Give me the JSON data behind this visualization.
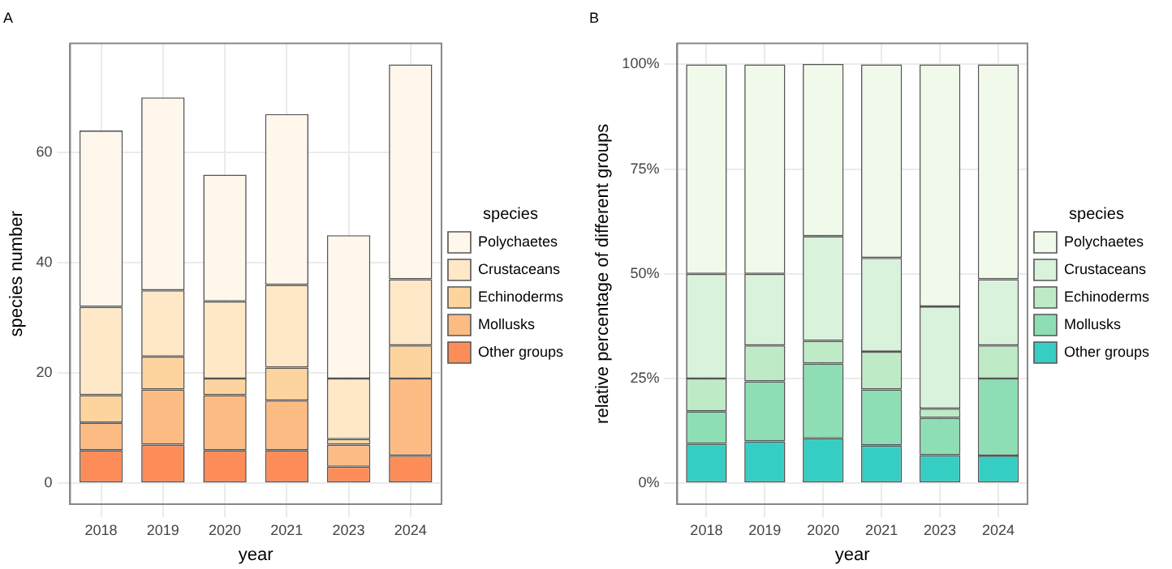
{
  "chart_data": [
    {
      "type": "bar",
      "title": "A",
      "xlabel": "year",
      "ylabel": "species number",
      "legend_title": "species",
      "categories": [
        "2018",
        "2019",
        "2020",
        "2021",
        "2023",
        "2024"
      ],
      "stacked": true,
      "legend": "right",
      "grid": true,
      "ylim": [
        -3.8,
        79.8
      ],
      "yticks": [
        0,
        20,
        40,
        60
      ],
      "series": [
        {
          "name": "Other groups",
          "color": "#fc8d59",
          "values": [
            6,
            7,
            6,
            6,
            3,
            5
          ]
        },
        {
          "name": "Mollusks",
          "color": "#fdbb84",
          "values": [
            5,
            10,
            10,
            9,
            4,
            14
          ]
        },
        {
          "name": "Echinoderms",
          "color": "#fdd49e",
          "values": [
            5,
            6,
            3,
            6,
            1,
            6
          ]
        },
        {
          "name": "Crustaceans",
          "color": "#fee8c8",
          "values": [
            16,
            12,
            14,
            15,
            11,
            12
          ]
        },
        {
          "name": "Polychaetes",
          "color": "#fff7ec",
          "values": [
            32,
            35,
            23,
            31,
            26,
            39
          ]
        }
      ]
    },
    {
      "type": "bar",
      "title": "B",
      "xlabel": "year",
      "ylabel": "relative percentage of different groups",
      "legend_title": "species",
      "categories": [
        "2018",
        "2019",
        "2020",
        "2021",
        "2023",
        "2024"
      ],
      "stacked": true,
      "legend": "right",
      "grid": true,
      "ylim": [
        -5,
        105
      ],
      "yticks": [
        {
          "value": 0,
          "label": "0%"
        },
        {
          "value": 25,
          "label": "25%"
        },
        {
          "value": 50,
          "label": "50%"
        },
        {
          "value": 75,
          "label": "75%"
        },
        {
          "value": 100,
          "label": "100%"
        }
      ],
      "series": [
        {
          "name": "Other groups",
          "color": "#36cec3",
          "values": [
            9.4,
            10,
            10.7,
            9.0,
            6.7,
            6.6
          ]
        },
        {
          "name": "Mollusks",
          "color": "#8ddeb4",
          "values": [
            7.8,
            14.3,
            17.9,
            13.4,
            8.9,
            18.4
          ]
        },
        {
          "name": "Echinoderms",
          "color": "#bfeac6",
          "values": [
            7.8,
            8.6,
            5.4,
            9.0,
            2.2,
            7.9
          ]
        },
        {
          "name": "Crustaceans",
          "color": "#d9f2dc",
          "values": [
            25,
            17.1,
            25,
            22.4,
            24.4,
            15.8
          ]
        },
        {
          "name": "Polychaetes",
          "color": "#f1faea",
          "values": [
            50,
            50,
            41.1,
            46.2,
            57.8,
            51.3
          ]
        }
      ]
    }
  ]
}
